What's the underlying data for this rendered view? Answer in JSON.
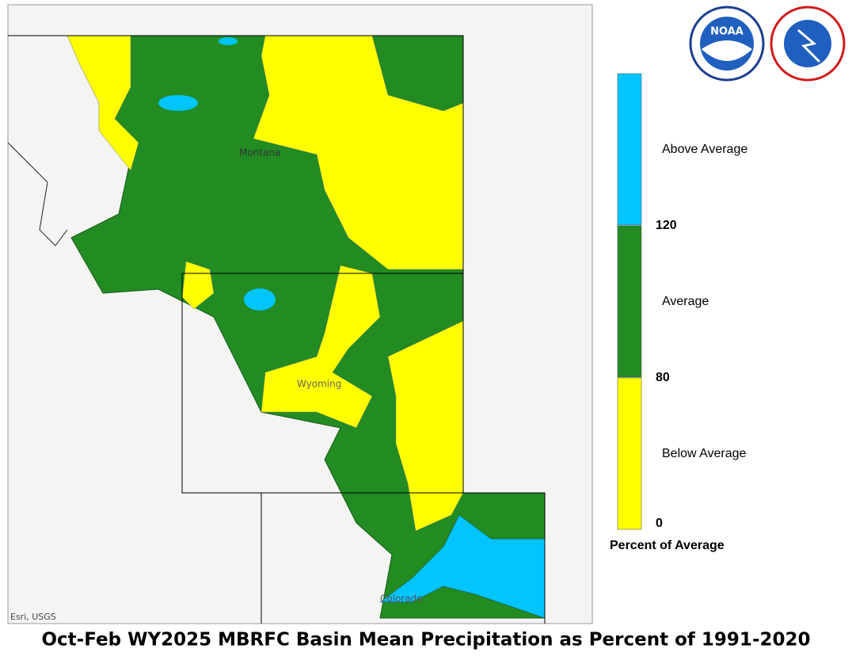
{
  "title": "Oct-Feb WY2025 MBRFC Basin Mean Precipitation as Percent of 1991-2020",
  "map": {
    "labels": [
      "Montana",
      "Wyoming",
      "Colorado"
    ],
    "attribution": "Esri, USGS"
  },
  "logos": {
    "noaa": "NOAA"
  },
  "legend": {
    "title": "Percent of Average",
    "classes": [
      {
        "label": "Above Average",
        "color": "#00c5ff"
      },
      {
        "label": "Average",
        "color": "#228b22"
      },
      {
        "label": "Below Average",
        "color": "#ffff00"
      }
    ],
    "ticks": [
      "120",
      "80",
      "0"
    ]
  }
}
